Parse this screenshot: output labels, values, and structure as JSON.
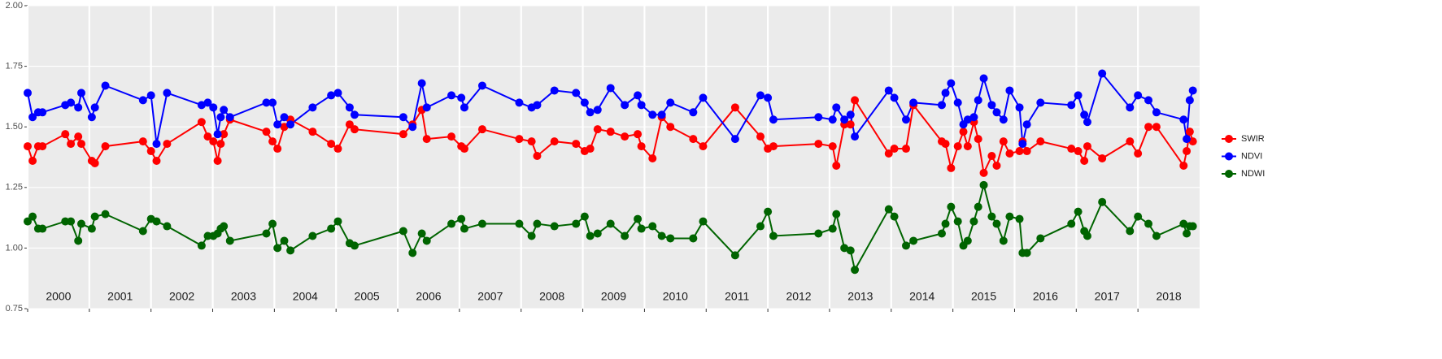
{
  "chart_data": {
    "type": "line",
    "x": [
      2000.0,
      2000.08,
      2000.17,
      2000.24,
      2000.61,
      2000.7,
      2000.82,
      2000.87,
      2001.04,
      2001.09,
      2001.26,
      2001.87,
      2002.0,
      2002.09,
      2002.26,
      2002.82,
      2002.92,
      2003.01,
      2003.08,
      2003.13,
      2003.18,
      2003.28,
      2003.87,
      2003.97,
      2004.05,
      2004.16,
      2004.26,
      2004.62,
      2004.92,
      2005.03,
      2005.22,
      2005.3,
      2006.09,
      2006.24,
      2006.39,
      2006.47,
      2006.87,
      2007.03,
      2007.08,
      2007.37,
      2007.97,
      2008.17,
      2008.26,
      2008.54,
      2008.89,
      2009.03,
      2009.12,
      2009.24,
      2009.45,
      2009.68,
      2009.89,
      2009.95,
      2010.13,
      2010.28,
      2010.42,
      2010.79,
      2010.95,
      2011.47,
      2011.88,
      2012.0,
      2012.09,
      2012.82,
      2013.05,
      2013.11,
      2013.24,
      2013.34,
      2013.41,
      2013.96,
      2014.05,
      2014.24,
      2014.36,
      2014.82,
      2014.88,
      2014.97,
      2015.08,
      2015.17,
      2015.24,
      2015.34,
      2015.41,
      2015.5,
      2015.63,
      2015.71,
      2015.82,
      2015.92,
      2016.08,
      2016.13,
      2016.2,
      2016.42,
      2016.92,
      2017.03,
      2017.13,
      2017.18,
      2017.42,
      2017.87,
      2018.0,
      2018.17,
      2018.3,
      2018.74,
      2018.79,
      2018.84,
      2018.89
    ],
    "series": [
      {
        "name": "SWIR",
        "color": "#ff0000",
        "values": [
          1.42,
          1.36,
          1.42,
          1.42,
          1.47,
          1.43,
          1.46,
          1.43,
          1.36,
          1.35,
          1.42,
          1.44,
          1.4,
          1.36,
          1.43,
          1.52,
          1.46,
          1.44,
          1.36,
          1.43,
          1.47,
          1.53,
          1.48,
          1.44,
          1.41,
          1.5,
          1.53,
          1.48,
          1.43,
          1.41,
          1.51,
          1.49,
          1.47,
          1.51,
          1.57,
          1.45,
          1.46,
          1.42,
          1.41,
          1.49,
          1.45,
          1.44,
          1.38,
          1.44,
          1.43,
          1.4,
          1.41,
          1.49,
          1.48,
          1.46,
          1.47,
          1.42,
          1.37,
          1.54,
          1.5,
          1.45,
          1.42,
          1.58,
          1.46,
          1.41,
          1.42,
          1.43,
          1.42,
          1.34,
          1.51,
          1.51,
          1.61,
          1.39,
          1.41,
          1.41,
          1.59,
          1.44,
          1.43,
          1.33,
          1.42,
          1.48,
          1.42,
          1.52,
          1.45,
          1.31,
          1.38,
          1.34,
          1.44,
          1.39,
          1.4,
          1.44,
          1.4,
          1.44,
          1.41,
          1.4,
          1.36,
          1.42,
          1.37,
          1.44,
          1.39,
          1.5,
          1.5,
          1.34,
          1.4,
          1.48,
          1.44
        ]
      },
      {
        "name": "NDVI",
        "color": "#0000ff",
        "values": [
          1.64,
          1.54,
          1.56,
          1.56,
          1.59,
          1.6,
          1.58,
          1.64,
          1.54,
          1.58,
          1.67,
          1.61,
          1.63,
          1.43,
          1.64,
          1.59,
          1.6,
          1.58,
          1.47,
          1.54,
          1.57,
          1.54,
          1.6,
          1.6,
          1.51,
          1.54,
          1.51,
          1.58,
          1.63,
          1.64,
          1.58,
          1.55,
          1.54,
          1.5,
          1.68,
          1.58,
          1.63,
          1.62,
          1.58,
          1.67,
          1.6,
          1.58,
          1.59,
          1.65,
          1.64,
          1.6,
          1.56,
          1.57,
          1.66,
          1.59,
          1.63,
          1.59,
          1.55,
          1.55,
          1.6,
          1.56,
          1.62,
          1.45,
          1.63,
          1.62,
          1.53,
          1.54,
          1.53,
          1.58,
          1.53,
          1.55,
          1.46,
          1.65,
          1.62,
          1.53,
          1.6,
          1.59,
          1.64,
          1.68,
          1.6,
          1.51,
          1.53,
          1.54,
          1.61,
          1.7,
          1.59,
          1.56,
          1.53,
          1.65,
          1.58,
          1.43,
          1.51,
          1.6,
          1.59,
          1.63,
          1.55,
          1.52,
          1.72,
          1.58,
          1.63,
          1.61,
          1.56,
          1.53,
          1.45,
          1.61,
          1.65
        ]
      },
      {
        "name": "NDWI",
        "color": "#006400",
        "values": [
          1.11,
          1.13,
          1.08,
          1.08,
          1.11,
          1.11,
          1.03,
          1.1,
          1.08,
          1.13,
          1.14,
          1.07,
          1.12,
          1.11,
          1.09,
          1.01,
          1.05,
          1.05,
          1.06,
          1.08,
          1.09,
          1.03,
          1.06,
          1.1,
          1.0,
          1.03,
          0.99,
          1.05,
          1.08,
          1.11,
          1.02,
          1.01,
          1.07,
          0.98,
          1.06,
          1.03,
          1.1,
          1.12,
          1.08,
          1.1,
          1.1,
          1.05,
          1.1,
          1.09,
          1.1,
          1.13,
          1.05,
          1.06,
          1.1,
          1.05,
          1.12,
          1.08,
          1.09,
          1.05,
          1.04,
          1.04,
          1.11,
          0.97,
          1.09,
          1.15,
          1.05,
          1.06,
          1.08,
          1.14,
          1.0,
          0.99,
          0.91,
          1.16,
          1.13,
          1.01,
          1.03,
          1.06,
          1.1,
          1.17,
          1.11,
          1.01,
          1.03,
          1.11,
          1.17,
          1.26,
          1.13,
          1.1,
          1.03,
          1.13,
          1.12,
          0.98,
          0.98,
          1.04,
          1.1,
          1.15,
          1.07,
          1.05,
          1.19,
          1.07,
          1.13,
          1.1,
          1.05,
          1.1,
          1.06,
          1.09,
          1.09
        ]
      }
    ],
    "xlim": [
      2000,
      2019
    ],
    "xticks": [
      2000,
      2001,
      2002,
      2003,
      2004,
      2005,
      2006,
      2007,
      2008,
      2009,
      2010,
      2011,
      2012,
      2013,
      2014,
      2015,
      2016,
      2017,
      2018
    ],
    "ylim": [
      0.75,
      2.0
    ],
    "yticks": [
      0.75,
      {
        "value": 1,
        "label": "1.00"
      },
      1.25,
      {
        "value": 1.5,
        "label": "1.50"
      },
      1.75,
      {
        "value": 2,
        "label": "2.00"
      }
    ],
    "grid": true,
    "legend": "right"
  }
}
